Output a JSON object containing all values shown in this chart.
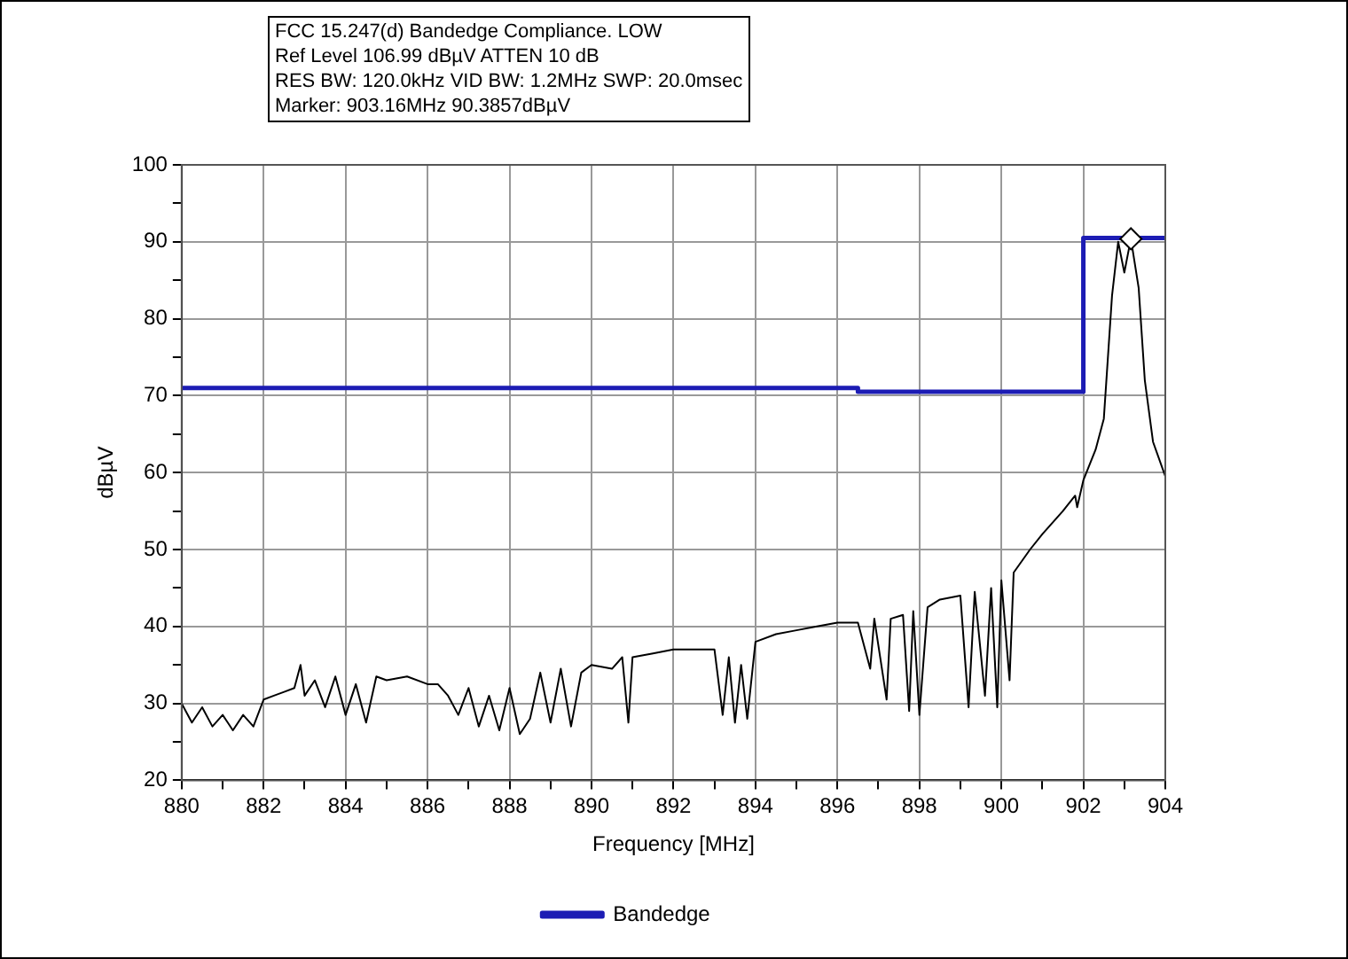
{
  "chart_data": {
    "type": "line",
    "title": "FCC 15.247(d)  Bandedge Compliance.  LOW",
    "annotations": [
      "Ref Level 106.99 dBµV    ATTEN 10 dB",
      "RES BW: 120.0kHz  VID BW: 1.2MHz  SWP: 20.0msec",
      "Marker: 903.16MHz  90.3857dBµV"
    ],
    "xlabel": "Frequency [MHz]",
    "ylabel": "dBµV",
    "xlim": [
      880,
      904
    ],
    "ylim": [
      20,
      100
    ],
    "xticks": [
      880,
      {
        "value": 881,
        "label": null
      },
      882,
      {
        "value": 883,
        "label": null
      },
      884,
      {
        "value": 885,
        "label": null
      },
      886,
      {
        "value": 887,
        "label": null
      },
      888,
      {
        "value": 889,
        "label": null
      },
      890,
      {
        "value": 891,
        "label": null
      },
      892,
      {
        "value": 893,
        "label": null
      },
      894,
      {
        "value": 895,
        "label": null
      },
      896,
      {
        "value": 897,
        "label": null
      },
      898,
      {
        "value": 899,
        "label": null
      },
      900,
      {
        "value": 901,
        "label": null
      },
      902,
      {
        "value": 903,
        "label": null
      },
      904
    ],
    "yticks": [
      20,
      {
        "value": 25,
        "label": null
      },
      30,
      {
        "value": 35,
        "label": null
      },
      40,
      {
        "value": 45,
        "label": null
      },
      50,
      {
        "value": 55,
        "label": null
      },
      60,
      {
        "value": 65,
        "label": null
      },
      70,
      {
        "value": 75,
        "label": null
      },
      80,
      {
        "value": 85,
        "label": null
      },
      90,
      {
        "value": 95,
        "label": null
      },
      100
    ],
    "grid": true,
    "legend": "bottom",
    "series": [
      {
        "color": "#000000",
        "x": [
          880,
          880.25,
          880.5,
          880.75,
          881,
          881.25,
          881.5,
          881.75,
          882,
          882.25,
          882.5,
          882.75,
          882.9,
          883,
          883.25,
          883.5,
          883.75,
          884,
          884.25,
          884.5,
          884.75,
          885,
          885.5,
          886,
          886.25,
          886.5,
          886.75,
          887,
          887.25,
          887.5,
          887.75,
          888,
          888.25,
          888.5,
          888.75,
          889,
          889.25,
          889.5,
          889.75,
          890,
          890.5,
          890.75,
          890.9,
          891,
          891.5,
          892,
          892.5,
          893,
          893.2,
          893.35,
          893.5,
          893.65,
          893.8,
          894,
          894.5,
          895,
          895.5,
          896,
          896.5,
          896.8,
          896.9,
          897.2,
          897.3,
          897.6,
          897.75,
          897.85,
          898,
          898.2,
          898.5,
          899,
          899.2,
          899.35,
          899.6,
          899.75,
          899.9,
          900,
          900.2,
          900.3,
          900.7,
          901,
          901.5,
          901.8,
          901.85,
          902,
          902.3,
          902.5,
          902.7,
          902.85,
          903,
          903.16,
          903.35,
          903.5,
          903.7,
          904
        ],
        "values": [
          30,
          27.5,
          29.5,
          27,
          28.5,
          26.5,
          28.5,
          27,
          30.5,
          31,
          31.5,
          32,
          35,
          31,
          33,
          29.5,
          33.5,
          28.5,
          32.5,
          27.5,
          33.5,
          33,
          33.5,
          32.5,
          32.5,
          31,
          28.5,
          32,
          27,
          31,
          26.5,
          32,
          26,
          28,
          34,
          27.5,
          34.5,
          27,
          34,
          35,
          34.5,
          36,
          27.5,
          36,
          36.5,
          37,
          37,
          37,
          28.5,
          36,
          27.5,
          35,
          28,
          38,
          39,
          39.5,
          40,
          40.5,
          40.5,
          34.5,
          41,
          30.5,
          41,
          41.5,
          29,
          42,
          28.5,
          42.5,
          43.5,
          44,
          29.5,
          44.5,
          31,
          45,
          29.5,
          46,
          33,
          47,
          50,
          52,
          55,
          57,
          55.5,
          59,
          63,
          67,
          83,
          90,
          86,
          90.4,
          84,
          72,
          64,
          59.5
        ]
      },
      {
        "name": "Bandedge",
        "color": "#1c1cb4",
        "x": [
          880,
          896.5,
          896.5,
          902,
          902,
          904
        ],
        "values": [
          71,
          71,
          70.5,
          70.5,
          90.5,
          90.5
        ]
      },
      {
        "type": "scatter",
        "marker": "diamond",
        "color": "#000000",
        "x": [
          903.16
        ],
        "values": [
          90.3857
        ]
      }
    ]
  }
}
